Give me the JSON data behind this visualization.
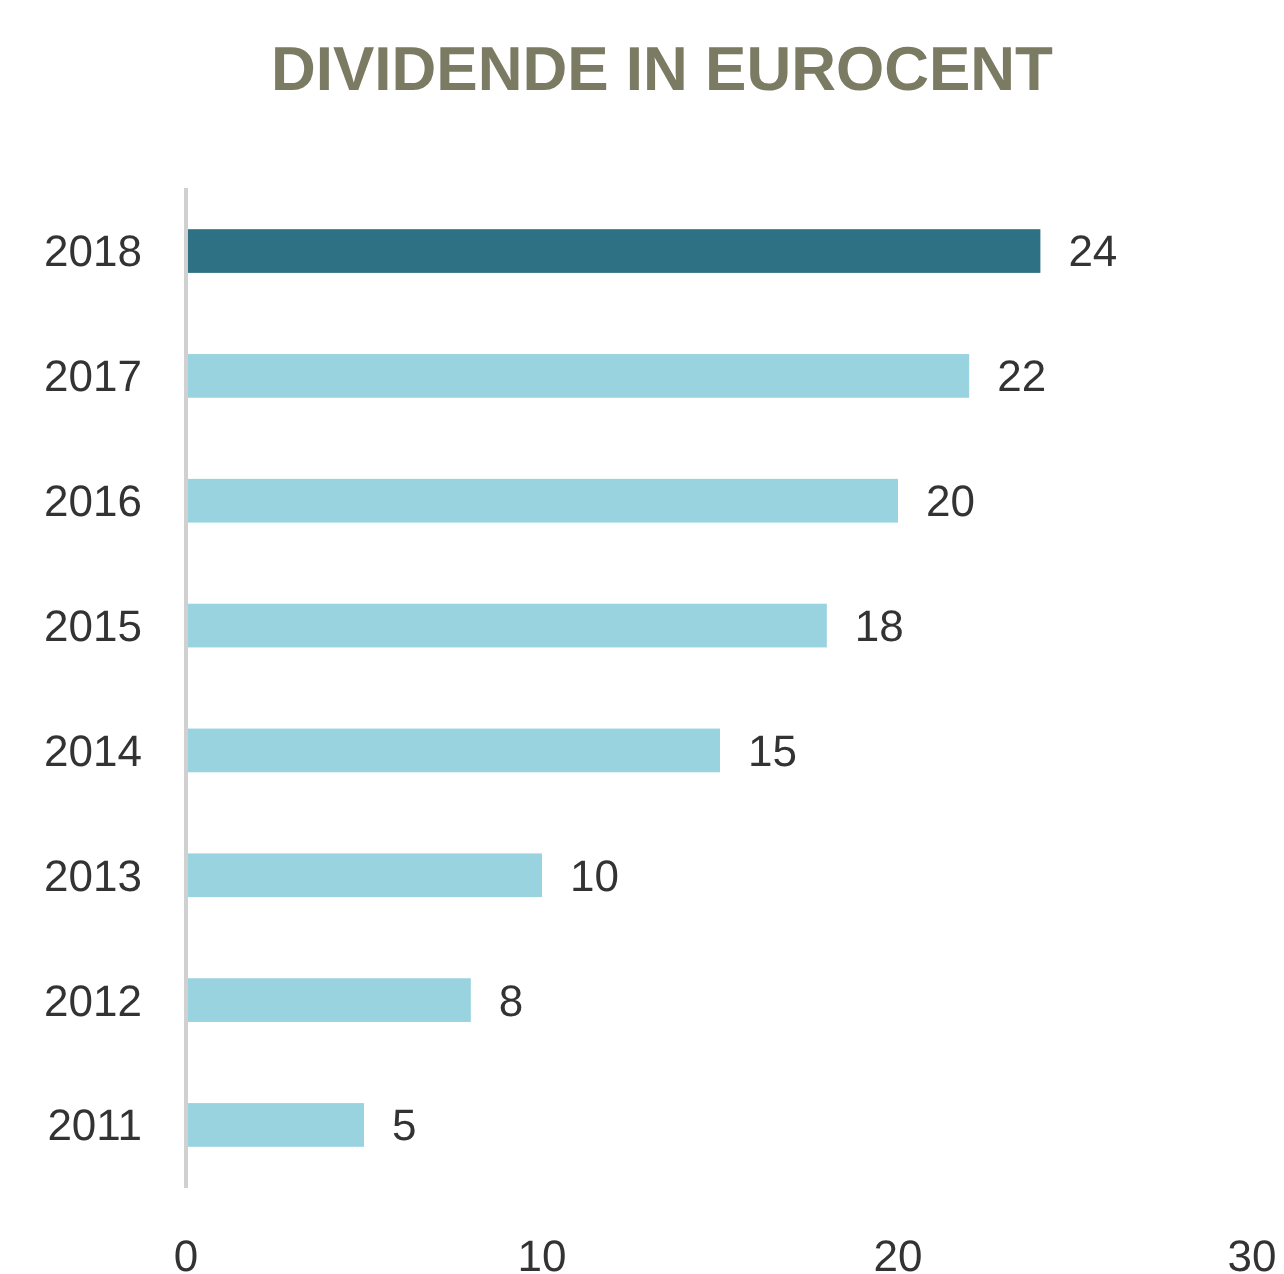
{
  "chart_data": {
    "type": "bar",
    "title": "DIVIDENDE IN EUROCENT",
    "orientation": "horizontal",
    "categories": [
      "2018",
      "2017",
      "2016",
      "2015",
      "2014",
      "2013",
      "2012",
      "2011"
    ],
    "values": [
      24,
      22,
      20,
      18,
      15,
      10,
      8,
      5
    ],
    "colors": [
      "#2e7185",
      "#99d3df",
      "#99d3df",
      "#99d3df",
      "#99d3df",
      "#99d3df",
      "#99d3df",
      "#99d3df"
    ],
    "xlim": [
      0,
      30
    ],
    "xticks": [
      0,
      10,
      20,
      30
    ],
    "data_labels": true
  }
}
